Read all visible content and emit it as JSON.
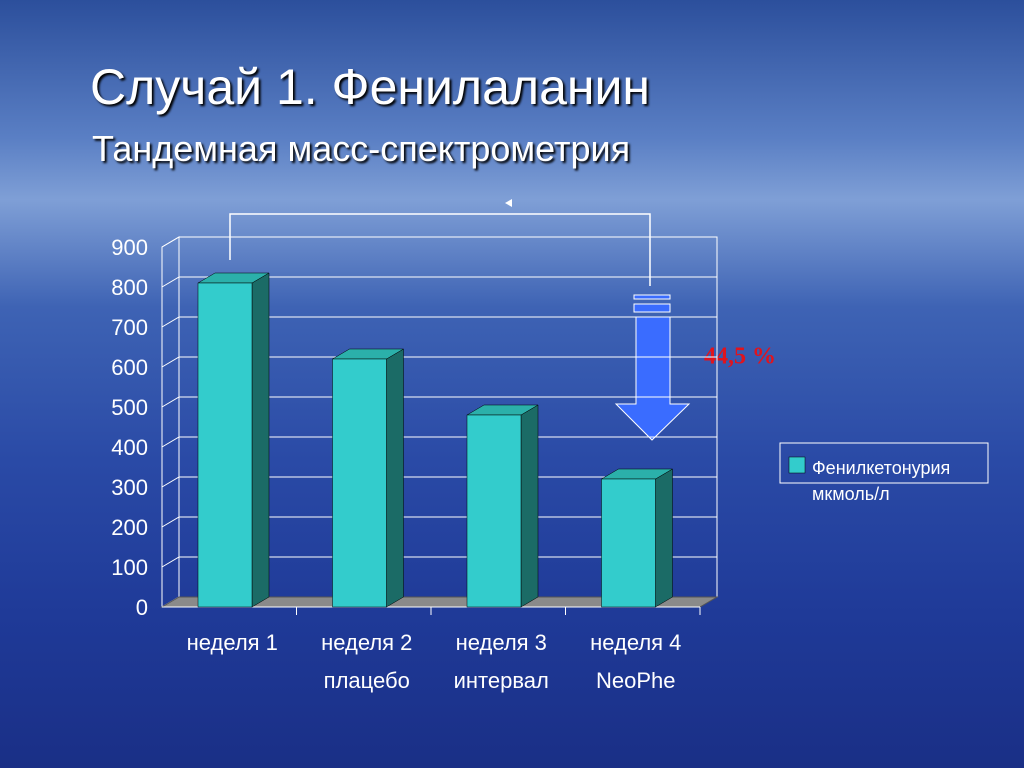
{
  "chart_data": {
    "type": "bar3d",
    "title": "Случай 1. Фенилаланин",
    "subtitle": "Тандемная масс-спектрометрия",
    "categories": [
      [
        "неделя 1"
      ],
      [
        "неделя 2",
        "плацебо"
      ],
      [
        "неделя 3",
        "интервал"
      ],
      [
        "неделя 4",
        "NeoPhe"
      ]
    ],
    "series": [
      {
        "name": "Фенилкетонурия мкмоль/л",
        "color": "#33cccc",
        "values": [
          810,
          620,
          480,
          320
        ]
      }
    ],
    "ylim": [
      0,
      900
    ],
    "yticks": [
      0,
      100,
      200,
      300,
      400,
      500,
      600,
      700,
      800,
      900
    ],
    "grid": true,
    "legend": "right",
    "annotation": "44,5 %"
  }
}
